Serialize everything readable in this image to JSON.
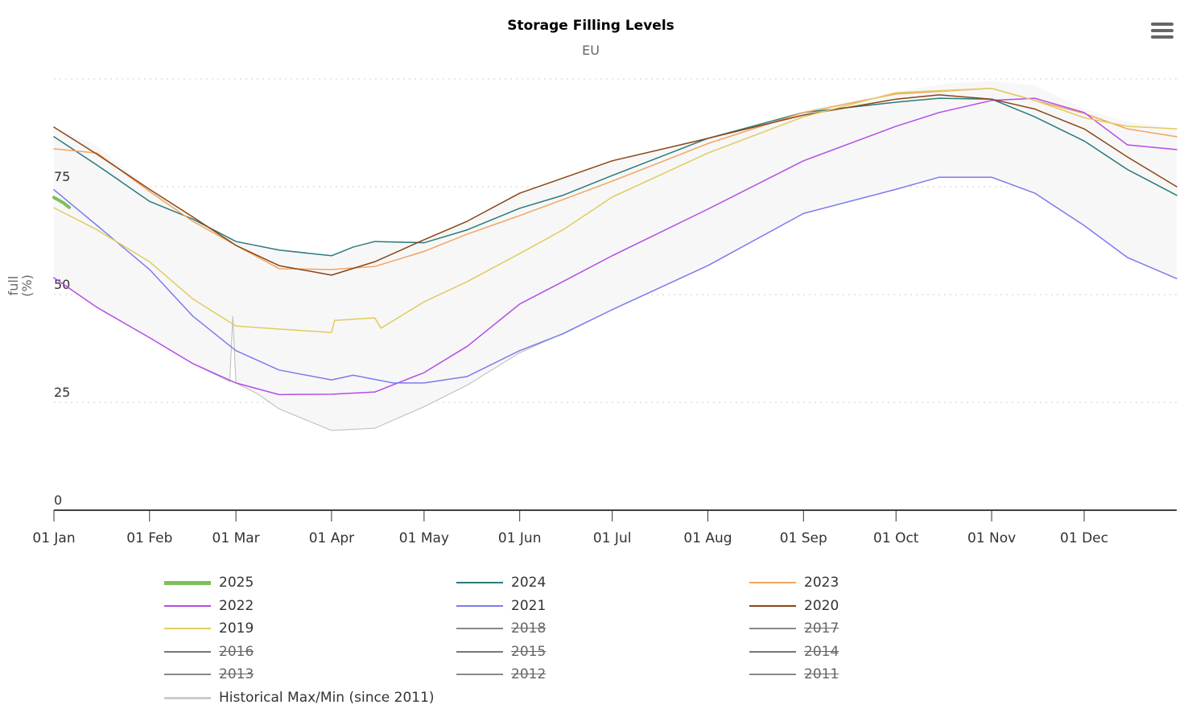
{
  "header": {
    "title": "Storage Filling Levels",
    "subtitle": "EU",
    "menu_icon": "hamburger-menu-icon"
  },
  "chart_data": {
    "type": "line",
    "title": "Storage Filling Levels",
    "subtitle": "EU",
    "ylabel_line1": "full",
    "ylabel_line2": "(%)",
    "xlabel": "",
    "ylim": [
      0,
      100
    ],
    "yticks": [
      0,
      25,
      50,
      75
    ],
    "ygrid": [
      0,
      25,
      50,
      75,
      100
    ],
    "xlim_days": [
      0,
      364
    ],
    "xticks": [
      {
        "day": 0,
        "label": "01 Jan"
      },
      {
        "day": 31,
        "label": "01 Feb"
      },
      {
        "day": 59,
        "label": "01 Mar"
      },
      {
        "day": 90,
        "label": "01 Apr"
      },
      {
        "day": 120,
        "label": "01 May"
      },
      {
        "day": 151,
        "label": "01 Jun"
      },
      {
        "day": 181,
        "label": "01 Jul"
      },
      {
        "day": 212,
        "label": "01 Aug"
      },
      {
        "day": 243,
        "label": "01 Sep"
      },
      {
        "day": 273,
        "label": "01 Oct"
      },
      {
        "day": 304,
        "label": "01 Nov"
      },
      {
        "day": 334,
        "label": "01 Dec"
      }
    ],
    "band": {
      "name": "Historical Max/Min (since 2011)",
      "color": "#bbbbbb",
      "fill": "#f7f7f7",
      "max": [
        [
          0,
          88.8
        ],
        [
          14,
          84.5
        ],
        [
          31,
          74.4
        ],
        [
          45,
          68
        ],
        [
          59,
          62.3
        ],
        [
          73,
          60.5
        ],
        [
          90,
          59
        ],
        [
          104,
          62.3
        ],
        [
          120,
          62.7
        ],
        [
          134,
          67
        ],
        [
          151,
          73.5
        ],
        [
          165,
          77
        ],
        [
          181,
          81
        ],
        [
          212,
          86.5
        ],
        [
          243,
          92.5
        ],
        [
          273,
          97
        ],
        [
          290,
          99
        ],
        [
          304,
          99.5
        ],
        [
          318,
          98.5
        ],
        [
          334,
          93
        ],
        [
          348,
          90
        ],
        [
          364,
          88.5
        ]
      ],
      "min": [
        [
          0,
          53.9
        ],
        [
          14,
          47
        ],
        [
          31,
          40
        ],
        [
          45,
          34
        ],
        [
          57,
          29.8
        ],
        [
          58,
          45
        ],
        [
          59,
          29.5
        ],
        [
          66,
          27
        ],
        [
          73,
          23.5
        ],
        [
          90,
          18.5
        ],
        [
          104,
          19
        ],
        [
          120,
          24
        ],
        [
          134,
          29
        ],
        [
          151,
          36.5
        ],
        [
          165,
          41
        ],
        [
          181,
          46.5
        ],
        [
          212,
          56.7
        ],
        [
          243,
          68.8
        ],
        [
          273,
          74.4
        ],
        [
          287,
          77.2
        ],
        [
          304,
          77.2
        ],
        [
          318,
          73.5
        ],
        [
          334,
          66
        ],
        [
          348,
          58.6
        ],
        [
          364,
          53.7
        ]
      ]
    },
    "series": [
      {
        "name": "2025",
        "color": "#7cbf5a",
        "width": 4,
        "visible": true,
        "values": [
          [
            0,
            72.5
          ],
          [
            3,
            71.3
          ],
          [
            5,
            70.2
          ]
        ]
      },
      {
        "name": "2024",
        "color": "#2a7b7b",
        "width": 1.5,
        "visible": true,
        "values": [
          [
            0,
            86.6
          ],
          [
            14,
            80
          ],
          [
            31,
            71.6
          ],
          [
            45,
            67.5
          ],
          [
            59,
            62.3
          ],
          [
            73,
            60.3
          ],
          [
            90,
            59
          ],
          [
            97,
            61
          ],
          [
            104,
            62.3
          ],
          [
            120,
            62
          ],
          [
            134,
            65
          ],
          [
            151,
            70
          ],
          [
            165,
            73
          ],
          [
            181,
            77.6
          ],
          [
            212,
            86.2
          ],
          [
            243,
            92.2
          ],
          [
            273,
            94.6
          ],
          [
            287,
            95.5
          ],
          [
            304,
            95.3
          ],
          [
            318,
            91.2
          ],
          [
            334,
            85.6
          ],
          [
            348,
            79
          ],
          [
            364,
            73
          ]
        ]
      },
      {
        "name": "2023",
        "color": "#f4a460",
        "width": 1.5,
        "visible": true,
        "values": [
          [
            0,
            83.8
          ],
          [
            14,
            82.8
          ],
          [
            31,
            73.9
          ],
          [
            45,
            67
          ],
          [
            59,
            61.4
          ],
          [
            73,
            56
          ],
          [
            90,
            55.8
          ],
          [
            104,
            56.5
          ],
          [
            120,
            60
          ],
          [
            134,
            64
          ],
          [
            151,
            68.3
          ],
          [
            165,
            72
          ],
          [
            181,
            76.3
          ],
          [
            212,
            85
          ],
          [
            243,
            92.2
          ],
          [
            273,
            96.5
          ],
          [
            304,
            97.8
          ],
          [
            318,
            95
          ],
          [
            334,
            92
          ],
          [
            348,
            88.4
          ],
          [
            364,
            86.6
          ]
        ]
      },
      {
        "name": "2022",
        "color": "#b44de8",
        "width": 1.5,
        "visible": true,
        "values": [
          [
            0,
            53.9
          ],
          [
            14,
            47
          ],
          [
            31,
            40
          ],
          [
            45,
            34
          ],
          [
            59,
            29.5
          ],
          [
            73,
            26.8
          ],
          [
            90,
            26.9
          ],
          [
            104,
            27.4
          ],
          [
            120,
            31.9
          ],
          [
            134,
            38
          ],
          [
            151,
            47.8
          ],
          [
            165,
            53
          ],
          [
            181,
            59
          ],
          [
            212,
            69.8
          ],
          [
            243,
            81
          ],
          [
            273,
            89
          ],
          [
            287,
            92.2
          ],
          [
            304,
            95
          ],
          [
            318,
            95.5
          ],
          [
            334,
            92.2
          ],
          [
            348,
            84.7
          ],
          [
            364,
            83.6
          ]
        ]
      },
      {
        "name": "2021",
        "color": "#7b7bf0",
        "width": 1.5,
        "visible": true,
        "values": [
          [
            0,
            74.3
          ],
          [
            14,
            66
          ],
          [
            31,
            55.8
          ],
          [
            45,
            45
          ],
          [
            59,
            37
          ],
          [
            73,
            32.5
          ],
          [
            90,
            30.2
          ],
          [
            97,
            31.3
          ],
          [
            110,
            29.5
          ],
          [
            120,
            29.5
          ],
          [
            134,
            31
          ],
          [
            151,
            37
          ],
          [
            165,
            40.9
          ],
          [
            181,
            46.5
          ],
          [
            212,
            56.7
          ],
          [
            243,
            68.8
          ],
          [
            273,
            74.4
          ],
          [
            287,
            77.2
          ],
          [
            304,
            77.2
          ],
          [
            318,
            73.5
          ],
          [
            334,
            66
          ],
          [
            348,
            58.6
          ],
          [
            364,
            53.7
          ]
        ]
      },
      {
        "name": "2020",
        "color": "#8b4513",
        "width": 1.5,
        "visible": true,
        "values": [
          [
            0,
            88.8
          ],
          [
            14,
            82.5
          ],
          [
            31,
            74.4
          ],
          [
            45,
            68
          ],
          [
            59,
            61.4
          ],
          [
            73,
            56.7
          ],
          [
            90,
            54.5
          ],
          [
            104,
            57.6
          ],
          [
            120,
            62.7
          ],
          [
            134,
            67
          ],
          [
            151,
            73.5
          ],
          [
            165,
            77
          ],
          [
            181,
            81
          ],
          [
            212,
            86.2
          ],
          [
            243,
            91.6
          ],
          [
            273,
            95.3
          ],
          [
            287,
            96.3
          ],
          [
            304,
            95.3
          ],
          [
            318,
            93
          ],
          [
            334,
            88.4
          ],
          [
            348,
            81.9
          ],
          [
            364,
            75
          ]
        ]
      },
      {
        "name": "2019",
        "color": "#e0cc60",
        "width": 1.5,
        "visible": true,
        "values": [
          [
            0,
            70.1
          ],
          [
            14,
            65
          ],
          [
            31,
            57.6
          ],
          [
            45,
            49
          ],
          [
            59,
            42.7
          ],
          [
            73,
            42
          ],
          [
            90,
            41.2
          ],
          [
            91,
            44
          ],
          [
            104,
            44.6
          ],
          [
            106,
            42.2
          ],
          [
            120,
            48.3
          ],
          [
            134,
            53
          ],
          [
            151,
            59.5
          ],
          [
            165,
            65
          ],
          [
            181,
            72.6
          ],
          [
            212,
            82.8
          ],
          [
            243,
            91.2
          ],
          [
            273,
            96.8
          ],
          [
            304,
            97.8
          ],
          [
            318,
            95
          ],
          [
            334,
            91
          ],
          [
            348,
            89
          ],
          [
            364,
            88.4
          ]
        ]
      },
      {
        "name": "2018",
        "color": "#888888",
        "visible": false,
        "values": []
      },
      {
        "name": "2017",
        "color": "#888888",
        "visible": false,
        "values": []
      },
      {
        "name": "2016",
        "color": "#777777",
        "visible": false,
        "values": []
      },
      {
        "name": "2015",
        "color": "#777777",
        "visible": false,
        "values": []
      },
      {
        "name": "2014",
        "color": "#777777",
        "visible": false,
        "values": []
      },
      {
        "name": "2013",
        "color": "#888888",
        "visible": false,
        "values": []
      },
      {
        "name": "2012",
        "color": "#888888",
        "visible": false,
        "values": []
      },
      {
        "name": "2011",
        "color": "#888888",
        "visible": false,
        "values": []
      }
    ],
    "legend_position": "bottom",
    "legend_order": [
      "2025",
      "2024",
      "2023",
      "2022",
      "2021",
      "2020",
      "2019",
      "2018",
      "2017",
      "2016",
      "2015",
      "2014",
      "2013",
      "2012",
      "2011",
      "Historical Max/Min (since 2011)"
    ]
  }
}
